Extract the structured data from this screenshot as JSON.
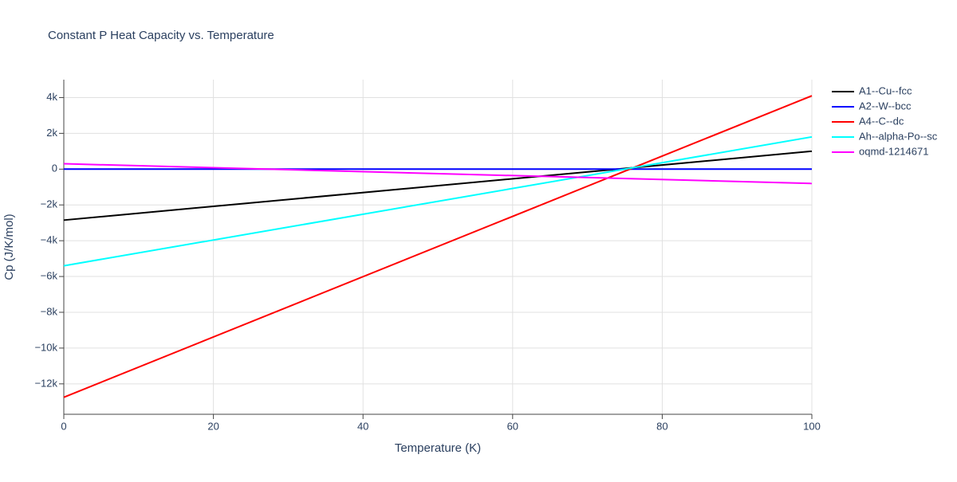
{
  "chart_data": {
    "type": "line",
    "title": "Constant P Heat Capacity vs. Temperature",
    "x_label": "Temperature (K)",
    "y_label": "Cp (J/K/mol)",
    "x": [
      0,
      100
    ],
    "series": [
      {
        "name": "A1--Cu--fcc",
        "color": "#000000",
        "values": [
          -2850,
          1000
        ]
      },
      {
        "name": "A2--W--bcc",
        "color": "#0000ff",
        "values": [
          0,
          0
        ]
      },
      {
        "name": "A4--C--dc",
        "color": "#ff0000",
        "values": [
          -12750,
          4100
        ]
      },
      {
        "name": "Ah--alpha-Po--sc",
        "color": "#00ffff",
        "values": [
          -5400,
          1800
        ]
      },
      {
        "name": "oqmd-1214671",
        "color": "#ff00ff",
        "values": [
          300,
          -800
        ]
      }
    ],
    "xlim": [
      0,
      100
    ],
    "xticks": [
      0,
      20,
      40,
      60,
      80,
      100
    ],
    "ylim": [
      -13700,
      5000
    ],
    "yticks": [
      {
        "value": -12000,
        "label": "−12k"
      },
      {
        "value": -10000,
        "label": "−10k"
      },
      {
        "value": -8000,
        "label": "−8k"
      },
      {
        "value": -6000,
        "label": "−6k"
      },
      {
        "value": -4000,
        "label": "−4k"
      },
      {
        "value": -2000,
        "label": "−2k"
      },
      0,
      {
        "value": 2000,
        "label": "2k"
      },
      {
        "value": 4000,
        "label": "4k"
      }
    ],
    "grid": true
  }
}
